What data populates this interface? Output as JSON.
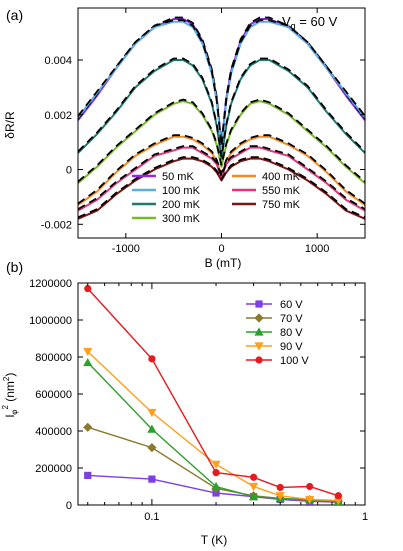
{
  "chart_data": [
    {
      "type": "line",
      "panel_label": "(a)",
      "annotation": {
        "main": "V",
        "sub": "g",
        "rest": " = 60 V"
      },
      "xlabel": "B (mT)",
      "ylabel": "δR/R",
      "xlim": [
        -1500,
        1500
      ],
      "ylim": [
        -0.0025,
        0.0059
      ],
      "xticks": [
        -1000,
        0,
        1000
      ],
      "xtick_labels": [
        "-1000",
        "0",
        "1000"
      ],
      "yticks": [
        -0.002,
        0,
        0.002,
        0.004
      ],
      "ytick_labels": [
        "-0.002",
        "0",
        "0.002",
        "0.004"
      ],
      "legend_placement": "bottom-center",
      "legend_columns": 2,
      "fit_style": "black dashed curves",
      "x": [
        -1500,
        -1300,
        -1100,
        -900,
        -700,
        -500,
        -400,
        -300,
        -200,
        -100,
        -50,
        0,
        50,
        100,
        200,
        300,
        400,
        500,
        700,
        900,
        1100,
        1300,
        1500
      ],
      "series": [
        {
          "name": "50 mK",
          "color": "#8b2be2",
          "values": [
            0.0018,
            0.0027,
            0.0037,
            0.0046,
            0.0052,
            0.0055,
            0.0055,
            0.0053,
            0.0047,
            0.0036,
            0.0026,
            0.0009,
            0.0026,
            0.0036,
            0.0047,
            0.0053,
            0.0055,
            0.0055,
            0.0052,
            0.0046,
            0.0037,
            0.0027,
            0.0018
          ]
        },
        {
          "name": "100 mK",
          "color": "#5aaee6",
          "values": [
            0.0019,
            0.0028,
            0.0037,
            0.0046,
            0.0052,
            0.0054,
            0.0054,
            0.0052,
            0.0046,
            0.0035,
            0.0025,
            0.0008,
            0.0025,
            0.0035,
            0.0046,
            0.0052,
            0.0054,
            0.0054,
            0.0052,
            0.0046,
            0.0037,
            0.0028,
            0.0019
          ]
        },
        {
          "name": "200 mK",
          "color": "#1f7a74",
          "values": [
            0.0006,
            0.0013,
            0.0021,
            0.003,
            0.0036,
            0.004,
            0.004,
            0.0038,
            0.0033,
            0.0024,
            0.0016,
            0.0004,
            0.0016,
            0.0024,
            0.0033,
            0.0038,
            0.004,
            0.004,
            0.0036,
            0.003,
            0.0021,
            0.0013,
            0.0006
          ]
        },
        {
          "name": "300 mK",
          "color": "#7ab82b",
          "values": [
            -0.0005,
            0.0001,
            0.0008,
            0.0014,
            0.002,
            0.0024,
            0.0025,
            0.0024,
            0.002,
            0.0014,
            0.0009,
            0.0001,
            0.0009,
            0.0014,
            0.002,
            0.0024,
            0.0025,
            0.0024,
            0.002,
            0.0014,
            0.0008,
            0.0001,
            -0.0005
          ]
        },
        {
          "name": "400 mK",
          "color": "#f08c28",
          "values": [
            -0.0013,
            -0.0008,
            -0.0001,
            0.0005,
            0.0009,
            0.0012,
            0.0012,
            0.0011,
            0.0009,
            0.0006,
            0.0003,
            -0.0002,
            0.0003,
            0.0006,
            0.0009,
            0.0011,
            0.0012,
            0.0012,
            0.0009,
            0.0005,
            -0.0001,
            -0.0008,
            -0.0013
          ]
        },
        {
          "name": "550 mK",
          "color": "#e0357a",
          "values": [
            -0.0015,
            -0.0011,
            -0.0005,
            0.0,
            0.0005,
            0.0007,
            0.0008,
            0.0008,
            0.0006,
            0.0004,
            0.0002,
            -0.0003,
            0.0002,
            0.0004,
            0.0006,
            0.0008,
            0.0008,
            0.0007,
            0.0005,
            0.0,
            -0.0005,
            -0.0011,
            -0.0015
          ]
        },
        {
          "name": "750 mK",
          "color": "#7a1515",
          "values": [
            -0.0018,
            -0.0015,
            -0.0009,
            -0.0004,
            0.0,
            0.0003,
            0.0004,
            0.0004,
            0.0003,
            0.0001,
            -0.0001,
            -0.0004,
            -0.0001,
            0.0001,
            0.0003,
            0.0004,
            0.0004,
            0.0003,
            0.0,
            -0.0004,
            -0.0009,
            -0.0015,
            -0.0018
          ]
        }
      ]
    },
    {
      "type": "line",
      "panel_label": "(b)",
      "xlabel": "T (K)",
      "ylabel_main": "l",
      "ylabel_sub": "φ",
      "ylabel_sup": "2",
      "ylabel_rest": " (nm",
      "ylabel_rest_sup": "2",
      "ylabel_close": ")",
      "xscale": "log",
      "xlim": [
        0.045,
        1
      ],
      "ylim": [
        0,
        1200000
      ],
      "xticks": [
        0.1,
        1
      ],
      "xtick_labels": [
        "0.1",
        "1"
      ],
      "yticks": [
        0,
        200000,
        400000,
        600000,
        800000,
        1000000,
        1200000
      ],
      "ytick_labels": [
        "0",
        "200000",
        "400000",
        "600000",
        "800000",
        "1000000",
        "1200000"
      ],
      "legend_placement": "top-right",
      "series": [
        {
          "name": "60 V",
          "color": "#7b3fe4",
          "marker": "square",
          "x": [
            0.05,
            0.1,
            0.2,
            0.3,
            0.4,
            0.55,
            0.75
          ],
          "values": [
            160000,
            140000,
            65000,
            45000,
            30000,
            20000,
            15000
          ]
        },
        {
          "name": "70 V",
          "color": "#8a7a2a",
          "marker": "diamond",
          "x": [
            0.05,
            0.1,
            0.2,
            0.3,
            0.4,
            0.55,
            0.75
          ],
          "values": [
            420000,
            310000,
            90000,
            50000,
            35000,
            25000,
            20000
          ]
        },
        {
          "name": "80 V",
          "color": "#2ca02c",
          "marker": "triangle-up",
          "x": [
            0.05,
            0.1,
            0.2,
            0.3,
            0.4,
            0.55,
            0.75
          ],
          "values": [
            770000,
            410000,
            100000,
            45000,
            35000,
            30000,
            20000
          ]
        },
        {
          "name": "90 V",
          "color": "#ff9f1a",
          "marker": "triangle-down",
          "x": [
            0.05,
            0.1,
            0.2,
            0.3,
            0.4,
            0.55,
            0.75
          ],
          "values": [
            830000,
            500000,
            220000,
            100000,
            50000,
            30000,
            25000
          ]
        },
        {
          "name": "100 V",
          "color": "#e8191f",
          "marker": "circle",
          "x": [
            0.05,
            0.1,
            0.2,
            0.3,
            0.4,
            0.55,
            0.75
          ],
          "values": [
            1170000,
            790000,
            175000,
            150000,
            95000,
            100000,
            50000
          ]
        }
      ]
    }
  ]
}
